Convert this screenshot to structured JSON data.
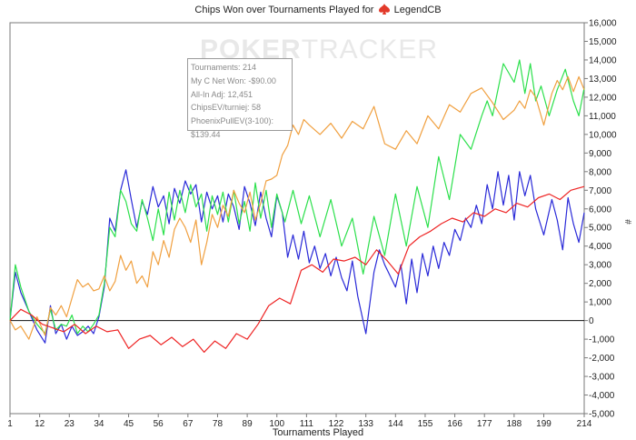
{
  "chart_data": {
    "type": "line",
    "title_prefix": "Chips Won over Tournaments Played for",
    "title_player": "LegendCB",
    "watermark": [
      "POKER",
      "TRACKER"
    ],
    "xlabel": "Tournaments Played",
    "ylabel": "#",
    "xlim": [
      1,
      214
    ],
    "ylim": [
      -5000,
      16000
    ],
    "xticks": [
      1,
      12,
      23,
      34,
      45,
      56,
      67,
      78,
      89,
      100,
      111,
      122,
      133,
      144,
      155,
      166,
      177,
      188,
      199,
      214
    ],
    "yticks": [
      -5000,
      -4000,
      -3000,
      -2000,
      -1000,
      0,
      1000,
      2000,
      3000,
      4000,
      5000,
      6000,
      7000,
      8000,
      9000,
      10000,
      11000,
      12000,
      13000,
      14000,
      15000,
      16000
    ],
    "ytick_labels": [
      "-5,000",
      "-4,000",
      "-3,000",
      "-2,000",
      "-1,000",
      "0",
      "1,000",
      "2,000",
      "3,000",
      "4,000",
      "5,000",
      "6,000",
      "7,000",
      "8,000",
      "9,000",
      "10,000",
      "11,000",
      "12,000",
      "13,000",
      "14,000",
      "15,000",
      "16,000"
    ],
    "tooltip": [
      "Tournaments: 214",
      "My C Net Won: -$90.00",
      "All-In Adj: 12,451",
      "ChipsEV/turniej: 58",
      "PhoenixPullEV(3-100): $139.44"
    ],
    "series": [
      {
        "color": "#2a2ad8",
        "x": [
          1,
          3,
          5,
          8,
          11,
          14,
          16,
          18,
          20,
          22,
          24,
          26,
          28,
          30,
          32,
          34,
          36,
          38,
          40,
          42,
          44,
          46,
          48,
          50,
          52,
          54,
          56,
          58,
          60,
          62,
          64,
          66,
          68,
          70,
          72,
          74,
          76,
          78,
          80,
          82,
          84,
          86,
          88,
          90,
          92,
          94,
          96,
          98,
          100,
          102,
          104,
          106,
          108,
          110,
          112,
          114,
          116,
          118,
          120,
          122,
          124,
          126,
          128,
          130,
          133,
          136,
          138,
          140,
          142,
          144,
          146,
          148,
          150,
          152,
          154,
          156,
          158,
          160,
          162,
          164,
          166,
          168,
          170,
          172,
          174,
          176,
          178,
          180,
          182,
          184,
          186,
          188,
          190,
          192,
          194,
          196,
          199,
          202,
          204,
          206,
          208,
          210,
          212,
          214
        ],
        "y": [
          0,
          2600,
          1500,
          500,
          -500,
          -1200,
          800,
          -700,
          -200,
          -1000,
          -300,
          -800,
          -600,
          -300,
          -700,
          200,
          1800,
          5500,
          4800,
          7000,
          8100,
          6500,
          5000,
          6400,
          5700,
          7200,
          6100,
          6700,
          5200,
          7100,
          6300,
          7500,
          6800,
          7300,
          5300,
          6900,
          6000,
          6700,
          5300,
          6800,
          6100,
          4900,
          7200,
          6300,
          5100,
          6900,
          5500,
          4500,
          6700,
          5800,
          3400,
          4600,
          3300,
          4800,
          3100,
          4000,
          2800,
          3600,
          2400,
          3400,
          2300,
          1600,
          3200,
          1300,
          -700,
          2600,
          3800,
          3000,
          2400,
          1800,
          3000,
          900,
          3300,
          1500,
          3600,
          2400,
          4000,
          2800,
          4200,
          3500,
          4900,
          4300,
          5500,
          5000,
          6200,
          5200,
          7300,
          6000,
          8000,
          6200,
          7800,
          5400,
          8000,
          6700,
          7800,
          6000,
          4600,
          6500,
          5400,
          3800,
          6600,
          5200,
          4200,
          5800
        ]
      },
      {
        "color": "#2ce04c",
        "x": [
          1,
          3,
          5,
          8,
          11,
          14,
          16,
          18,
          20,
          22,
          24,
          26,
          28,
          30,
          32,
          34,
          36,
          38,
          40,
          42,
          44,
          46,
          48,
          50,
          52,
          54,
          56,
          58,
          60,
          62,
          64,
          66,
          68,
          70,
          72,
          74,
          76,
          78,
          80,
          82,
          84,
          86,
          88,
          90,
          92,
          94,
          96,
          98,
          100,
          103,
          106,
          109,
          112,
          116,
          120,
          124,
          128,
          132,
          136,
          140,
          144,
          148,
          152,
          156,
          160,
          164,
          168,
          172,
          176,
          178,
          180,
          184,
          188,
          190,
          192,
          194,
          196,
          198,
          201,
          204,
          207,
          210,
          212,
          214
        ],
        "y": [
          0,
          3000,
          1800,
          500,
          -200,
          -700,
          600,
          -500,
          -200,
          -300,
          300,
          -700,
          -300,
          -600,
          -200,
          300,
          2000,
          5000,
          4500,
          7000,
          6400,
          5200,
          4800,
          6500,
          5500,
          4300,
          6000,
          4600,
          6900,
          5400,
          7000,
          5800,
          7300,
          6100,
          6800,
          4800,
          6700,
          5700,
          6900,
          5300,
          7000,
          5200,
          6400,
          4800,
          7400,
          5500,
          7000,
          5000,
          6800,
          5300,
          7000,
          5200,
          6700,
          4500,
          6500,
          4000,
          5500,
          2500,
          5600,
          3500,
          6800,
          4000,
          7200,
          5000,
          8800,
          6500,
          10000,
          9200,
          11000,
          11800,
          11000,
          13800,
          12800,
          14000,
          12200,
          13800,
          11800,
          12600,
          11000,
          12400,
          13500,
          11800,
          11000,
          12500
        ]
      },
      {
        "color": "#f0a040",
        "x": [
          1,
          3,
          5,
          8,
          11,
          14,
          16,
          18,
          20,
          22,
          24,
          26,
          28,
          30,
          32,
          34,
          36,
          38,
          40,
          42,
          44,
          46,
          48,
          50,
          52,
          54,
          56,
          58,
          60,
          62,
          64,
          66,
          68,
          70,
          72,
          74,
          76,
          78,
          80,
          82,
          84,
          86,
          88,
          90,
          92,
          94,
          96,
          98,
          100,
          102,
          104,
          106,
          108,
          110,
          112,
          116,
          120,
          124,
          128,
          132,
          136,
          140,
          144,
          148,
          152,
          156,
          160,
          164,
          168,
          172,
          176,
          180,
          184,
          188,
          190,
          192,
          194,
          196,
          199,
          202,
          204,
          206,
          208,
          210,
          212,
          214
        ],
        "y": [
          0,
          -500,
          -300,
          -1000,
          200,
          -800,
          700,
          300,
          800,
          200,
          1200,
          2200,
          1800,
          2000,
          1600,
          1700,
          2400,
          1600,
          2100,
          3500,
          2700,
          3200,
          2000,
          2400,
          1800,
          3700,
          3000,
          4300,
          3400,
          4900,
          5500,
          5000,
          4200,
          5400,
          3000,
          4200,
          5700,
          5000,
          6200,
          5600,
          7000,
          6300,
          5800,
          6900,
          5400,
          6300,
          7500,
          7600,
          7800,
          8900,
          9400,
          10500,
          10000,
          10800,
          10500,
          10000,
          10600,
          9800,
          10700,
          10300,
          11500,
          9500,
          9200,
          10200,
          9500,
          11000,
          10300,
          11600,
          11200,
          12200,
          12500,
          11700,
          10800,
          11300,
          11800,
          11400,
          12400,
          12000,
          10500,
          12200,
          12900,
          12400,
          13100,
          12300,
          13100,
          12400
        ]
      },
      {
        "color": "#ee2424",
        "x": [
          1,
          5,
          9,
          13,
          17,
          21,
          25,
          29,
          33,
          37,
          41,
          45,
          49,
          53,
          57,
          61,
          65,
          69,
          73,
          77,
          81,
          85,
          89,
          93,
          97,
          101,
          105,
          109,
          113,
          117,
          121,
          125,
          129,
          133,
          137,
          141,
          145,
          149,
          153,
          157,
          161,
          165,
          169,
          173,
          177,
          181,
          185,
          189,
          193,
          197,
          201,
          205,
          209,
          214
        ],
        "y": [
          0,
          600,
          300,
          -200,
          -400,
          -600,
          -200,
          -700,
          -300,
          -600,
          -500,
          -1500,
          -1000,
          -800,
          -1300,
          -900,
          -1400,
          -1000,
          -1700,
          -1100,
          -1500,
          -700,
          -1000,
          -200,
          800,
          1200,
          900,
          2700,
          3000,
          2600,
          3300,
          3200,
          3400,
          3000,
          3800,
          3200,
          2500,
          4000,
          4500,
          4800,
          5200,
          5500,
          5300,
          5800,
          5600,
          6000,
          5800,
          6300,
          6100,
          6600,
          6800,
          6500,
          7000,
          7200
        ]
      }
    ]
  }
}
